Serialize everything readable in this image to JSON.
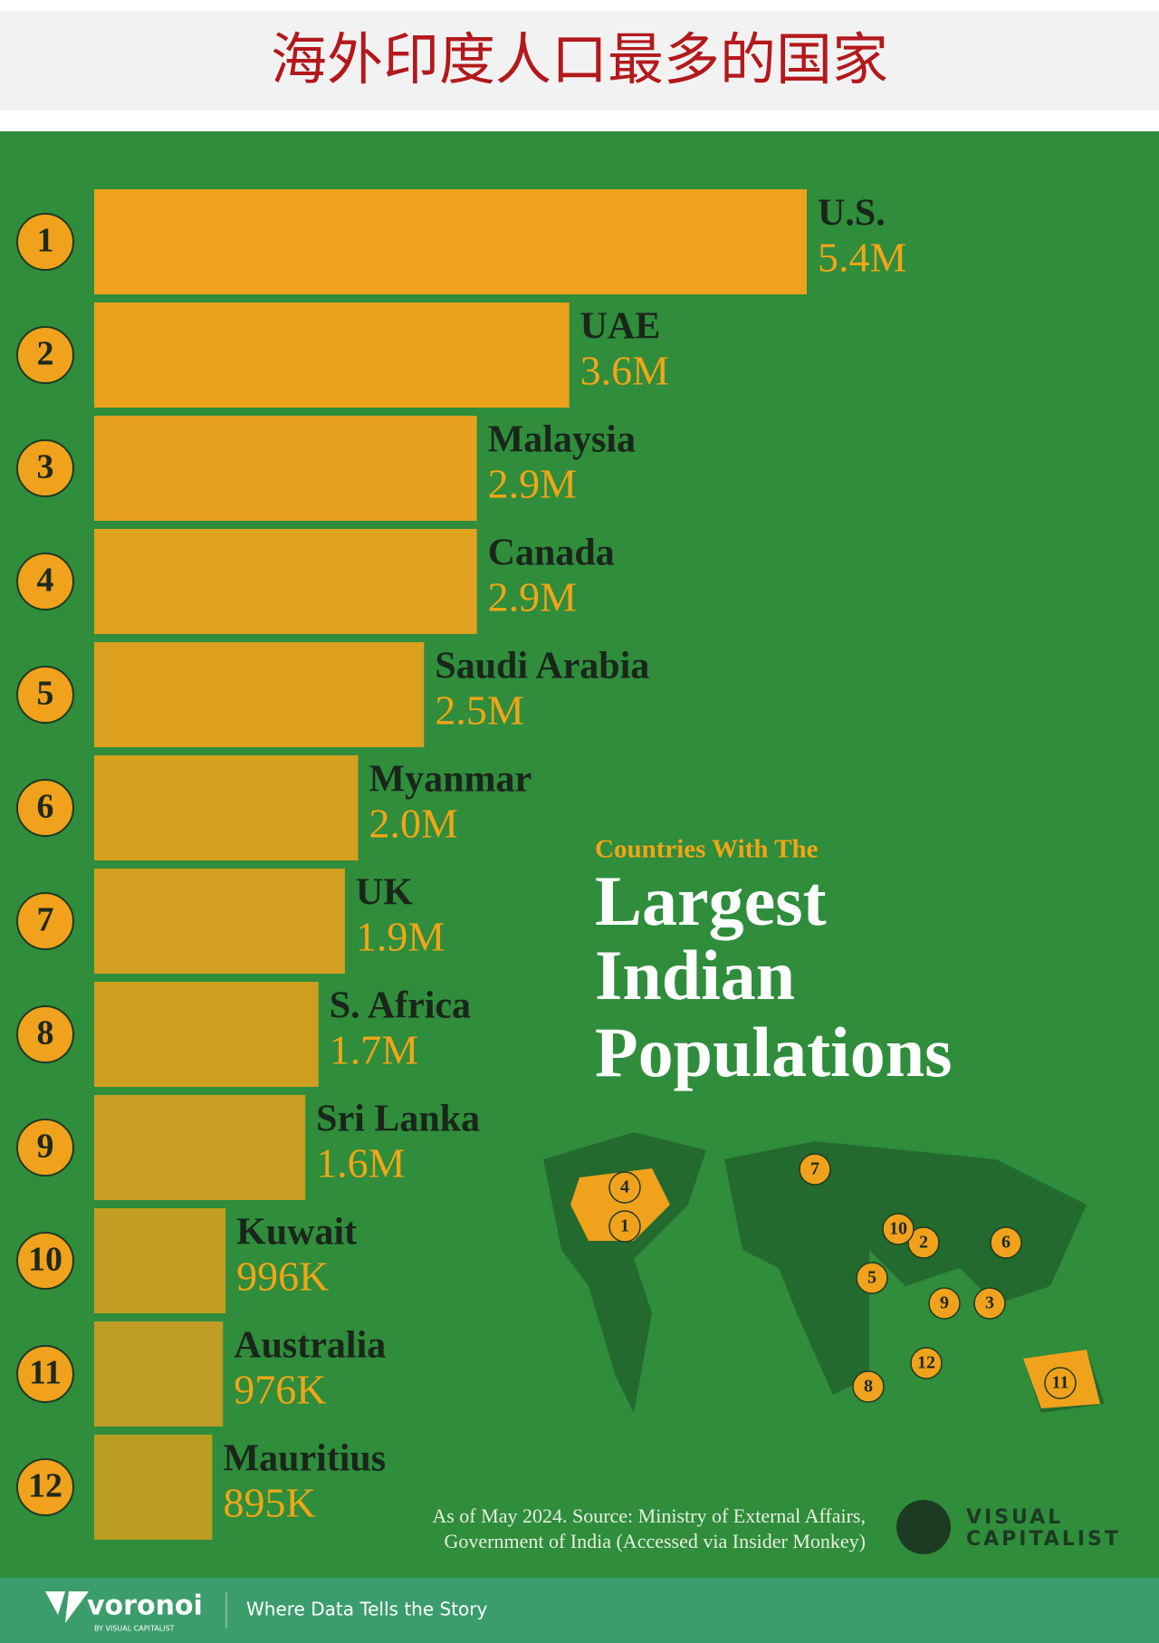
{
  "header_title": "海外印度人口最多的国家",
  "chart_data": {
    "type": "bar",
    "kicker": "Countries With The",
    "title_lines": [
      "Largest",
      "Indian",
      "Populations"
    ],
    "ranks": [
      1,
      2,
      3,
      4,
      5,
      6,
      7,
      8,
      9,
      10,
      11,
      12
    ],
    "categories": [
      "U.S.",
      "UAE",
      "Malaysia",
      "Canada",
      "Saudi Arabia",
      "Myanmar",
      "UK",
      "S. Africa",
      "Sri Lanka",
      "Kuwait",
      "Australia",
      "Mauritius"
    ],
    "values": [
      5400000,
      3600000,
      2900000,
      2900000,
      2500000,
      2000000,
      1900000,
      1700000,
      1600000,
      996000,
      976000,
      895000
    ],
    "value_labels": [
      "5.4M",
      "3.6M",
      "2.9M",
      "2.9M",
      "2.5M",
      "2.0M",
      "1.9M",
      "1.7M",
      "1.6M",
      "996K",
      "976K",
      "895K"
    ],
    "color": "#f0a21c",
    "source": [
      "As of May 2024. Source: Ministry of External Affairs,",
      "Government of India (Accessed via Insider Monkey)"
    ]
  },
  "logo": [
    "VISUAL",
    "CAPITALIST"
  ],
  "footer": {
    "brand": "voronoi",
    "brand_sub": "BY VISUAL CAPITALIST",
    "tagline": "Where Data Tells the Story"
  }
}
